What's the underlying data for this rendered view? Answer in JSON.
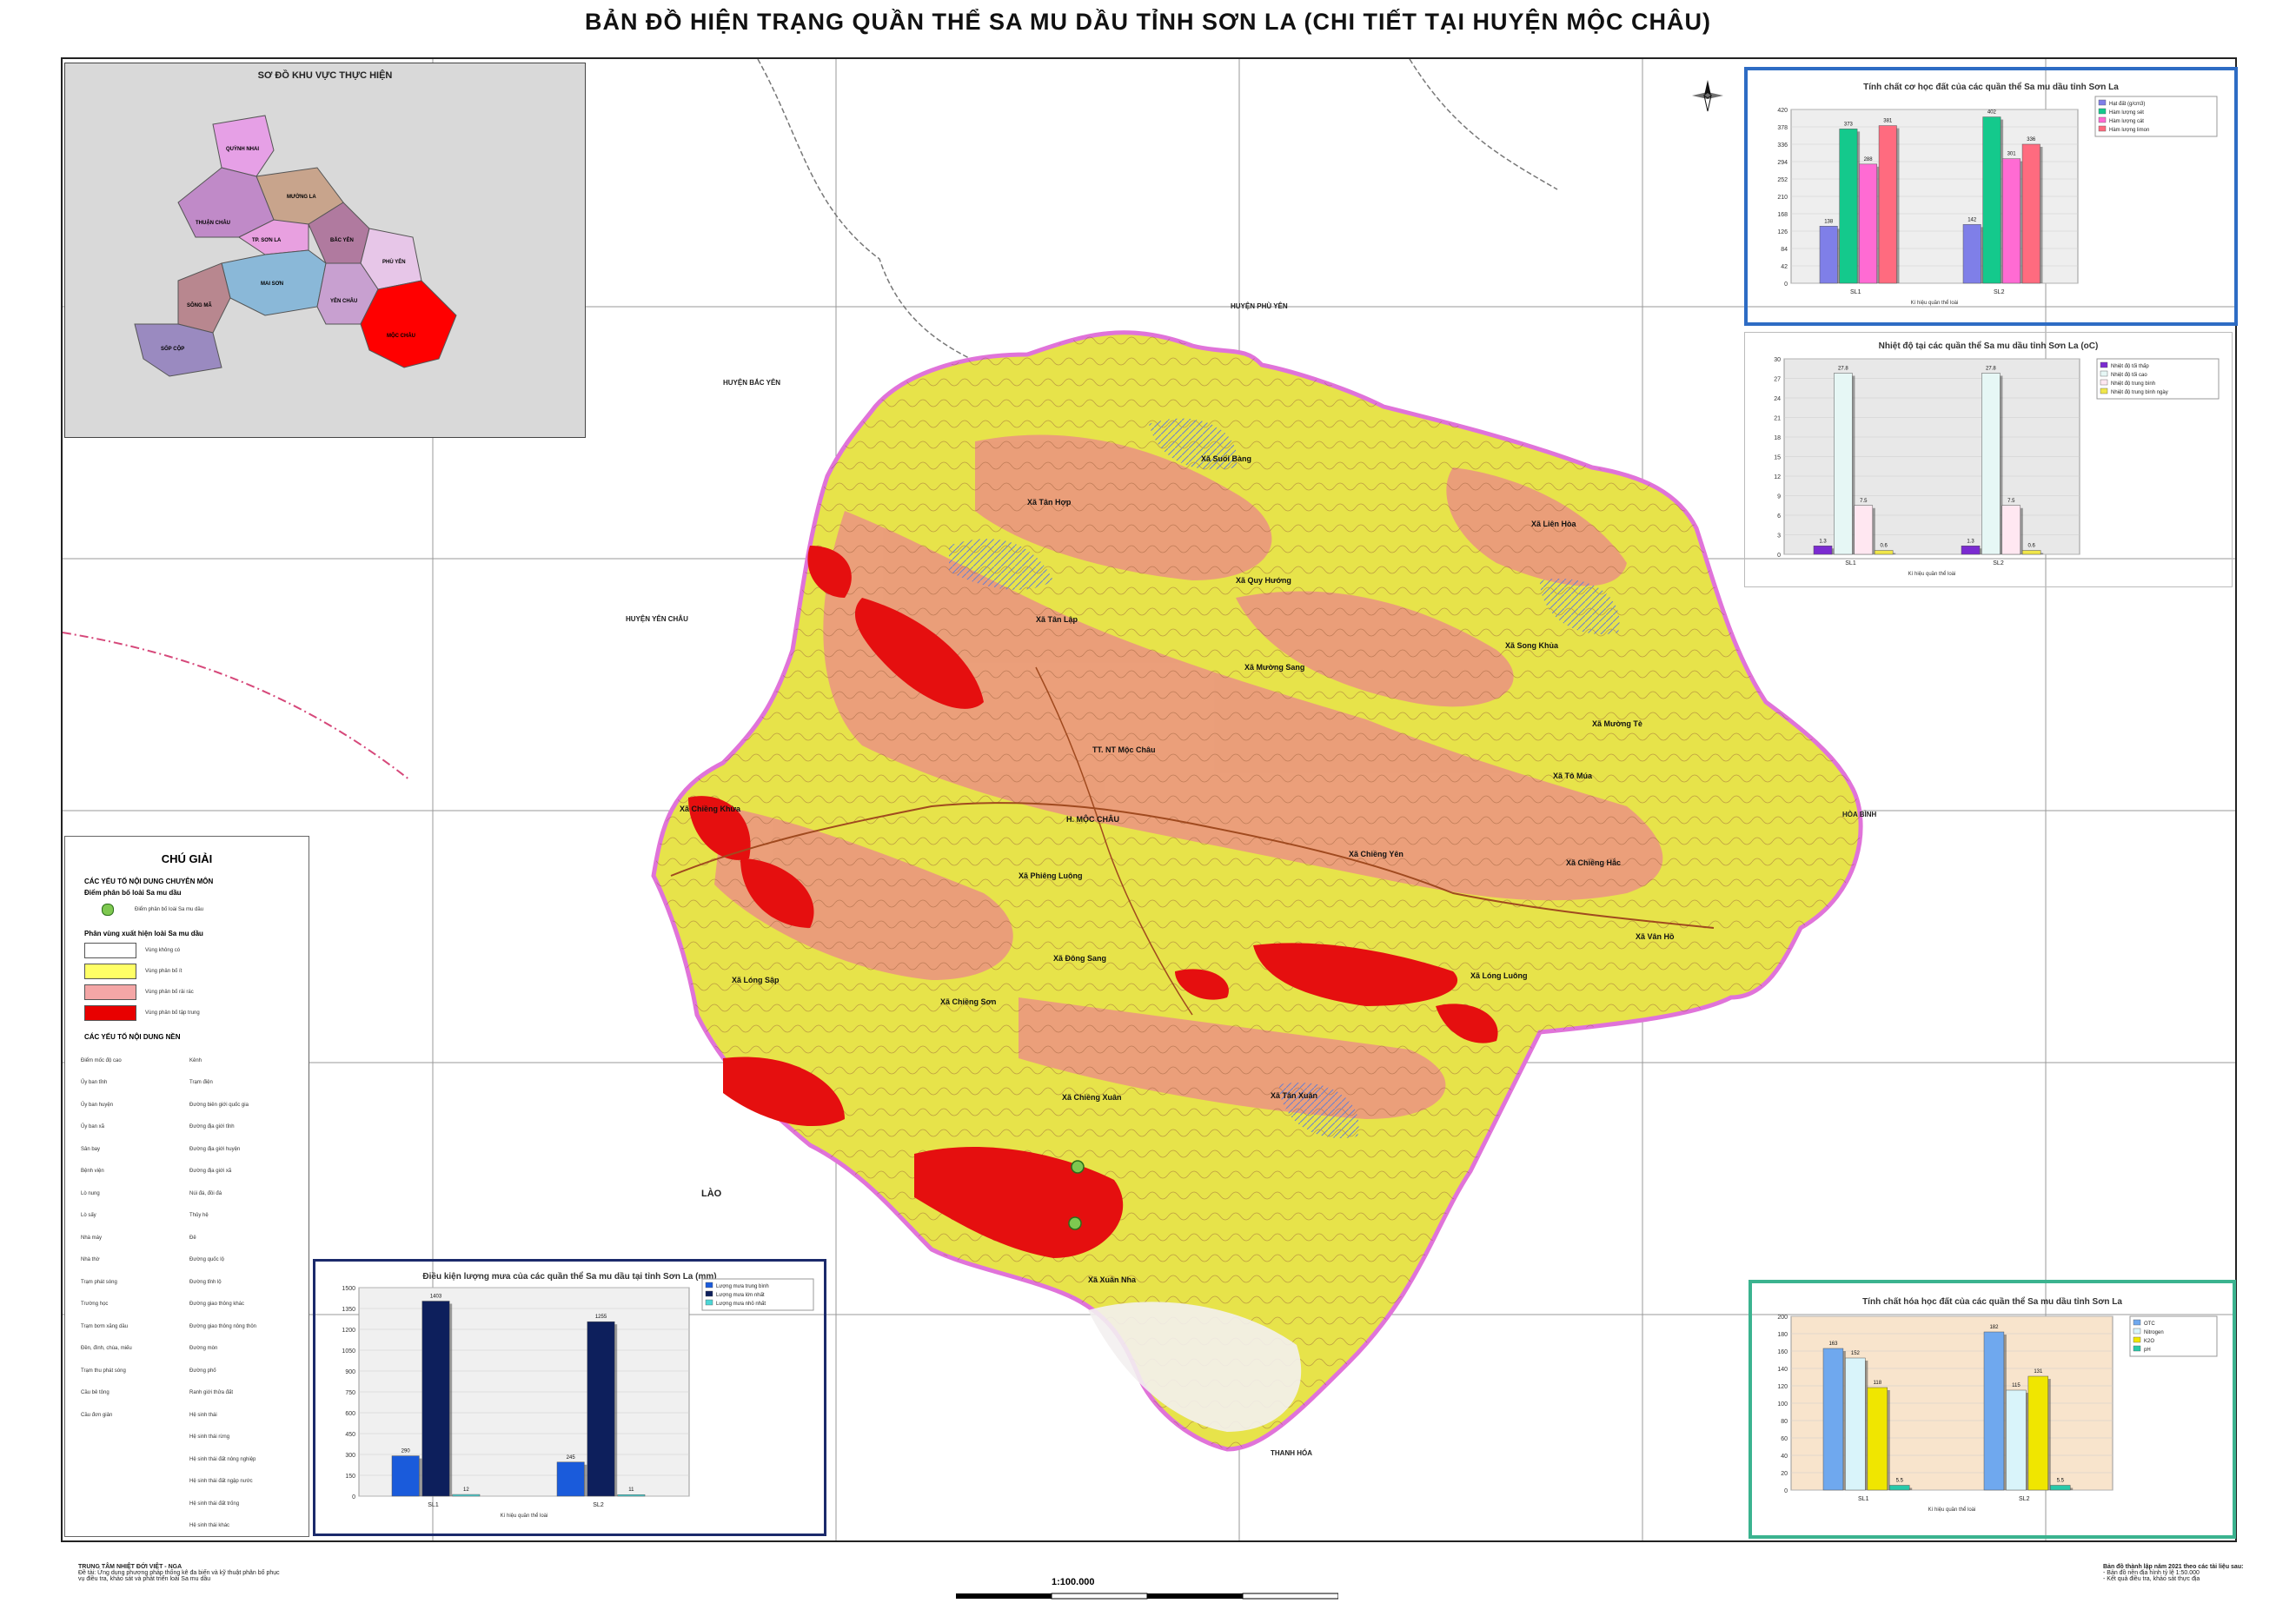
{
  "title": "BẢN ĐỒ HIỆN TRẠNG QUẦN THỂ SA MU DẦU TỈNH SƠN LA (CHI TIẾT TẠI HUYỆN MỘC CHÂU)",
  "inset": {
    "title": "SƠ ĐỒ KHU VỰC THỰC HIỆN",
    "districts": [
      "QUỲNH NHAI",
      "MƯỜNG LA",
      "THUẬN CHÂU",
      "TP. SƠN LA",
      "BẮC YÊN",
      "PHÙ YÊN",
      "MAI SƠN",
      "SÔNG MÃ",
      "YÊN CHÂU",
      "SỐP CỘP",
      "MỘC CHÂU"
    ]
  },
  "surroundings": {
    "phu_yen": "HUYỆN PHÙ YÊN",
    "bac_yen": "HUYỆN BẮC YÊN",
    "yen_chau": "HUYỆN YÊN CHÂU",
    "hoa_binh": "HÒA BÌNH",
    "lao": "LÀO",
    "thanh_hoa": "THANH HÓA"
  },
  "communes": [
    "Xã Suối Bàng",
    "Xã Liên Hòa",
    "Xã Tân Hợp",
    "Xã Quy Hướng",
    "Xã Tân Lập",
    "Xã Mường Sang",
    "Xã Song Khủa",
    "Xã Chiềng Khừa",
    "TT. NT Mộc Châu",
    "H. MỘC CHÂU",
    "Xã Tô Múa",
    "Xã Chiềng Yên",
    "Xã Phiêng Luông",
    "Xã Đông Sang",
    "Xã Lóng Sập",
    "Xã Chiềng Sơn",
    "Xã Chiềng Xuân",
    "Xã Tân Xuân",
    "Xã Xuân Nha",
    "Xã Lóng Luông",
    "Xã Mường Tè",
    "Xã Chiềng Hắc",
    "Xã Vân Hồ"
  ],
  "legend": {
    "title": "CHÚ GIẢI",
    "section1": "CÁC YẾU TỐ NỘI DUNG CHUYÊN MÔN",
    "dist_header": "Điểm phân bố loài Sa mu dầu",
    "dist_point": "Điểm phân bố loài Sa mu dầu",
    "zone_header": "Phân vùng xuất hiện loài Sa mu dầu",
    "zones": [
      "Vùng không có",
      "Vùng phân bố ít",
      "Vùng phân bố rải rác",
      "Vùng phân bố tập trung"
    ],
    "zone_colors": [
      "#ffffff",
      "#ffff66",
      "#f4a6a6",
      "#e80000"
    ],
    "section2": "CÁC YẾU TỐ NỘI DUNG NỀN",
    "items_left": [
      "Điểm mốc độ cao",
      "Ủy ban tỉnh",
      "Ủy ban huyện",
      "Ủy ban xã",
      "Sân bay",
      "Bệnh viện",
      "Lò nung",
      "Lò sấy",
      "Nhà máy",
      "Nhà thờ",
      "Trạm phát sóng",
      "Trường học",
      "Trạm bơm xăng dầu",
      "Đền, đình, chùa, miếu",
      "Trạm thu phát sóng",
      "Cầu bê tông",
      "Cầu đơn giản"
    ],
    "items_right": [
      "Kênh",
      "Trạm điện",
      "Đường biên giới quốc gia",
      "Đường địa giới tỉnh",
      "Đường địa giới huyện",
      "Đường địa giới xã",
      "Núi đá, đồi đá",
      "Thủy hệ",
      "Đê",
      "Đường quốc lộ",
      "Đường tỉnh lộ",
      "Đường giao thông khác",
      "Đường giao thông nông thôn",
      "Đường mòn",
      "Đường phố",
      "Ranh giới thửa đất",
      "Hệ sinh thái"
    ],
    "eco_items": [
      "Hệ sinh thái rừng",
      "Hệ sinh thái đất nông nghiệp",
      "Hệ sinh thái đất ngập nước",
      "Hệ sinh thái đất trống",
      "Hệ sinh thái khác"
    ]
  },
  "charts": {
    "chart1": {
      "title": "Tính chất cơ học đất của các quần thể Sa mu dầu tỉnh Sơn La",
      "type": "bar",
      "categories": [
        "SL1",
        "SL2"
      ],
      "xlabel": "Kí hiệu quần thể loài",
      "series": [
        {
          "name": "Hạt đất (g/cm3)",
          "color": "#7f7fe8",
          "values": [
            138,
            142
          ]
        },
        {
          "name": "Hàm lượng sét",
          "color": "#14c98c",
          "values": [
            373,
            402
          ]
        },
        {
          "name": "Hàm lượng cát",
          "color": "#ff6bd3",
          "values": [
            288,
            301
          ]
        },
        {
          "name": "Hàm lượng limon",
          "color": "#ff6b7f",
          "values": [
            381,
            336
          ]
        }
      ],
      "ylim": [
        0,
        420
      ]
    },
    "chart2": {
      "title": "Nhiệt độ tại các quần thể Sa mu dầu tỉnh Sơn La (oC)",
      "type": "bar",
      "categories": [
        "SL1",
        "SL2"
      ],
      "xlabel": "Kí hiệu quần thể loài",
      "series": [
        {
          "name": "Nhiệt độ tối thấp",
          "color": "#7b2bd1",
          "values": [
            1.3,
            1.3
          ]
        },
        {
          "name": "Nhiệt độ tối cao",
          "color": "#e6f7f5",
          "values": [
            27.8,
            27.8
          ]
        },
        {
          "name": "Nhiệt độ trung bình",
          "color": "#ffe7f1",
          "values": [
            7.5,
            7.5
          ]
        },
        {
          "name": "Nhiệt độ trung bình ngày",
          "color": "#f0e64a",
          "values": [
            0.6,
            0.6
          ]
        }
      ],
      "ylim": [
        0,
        30
      ]
    },
    "chart3": {
      "title": "Điều kiện lượng mưa của các quần thể Sa mu dầu tại tỉnh Sơn La (mm)",
      "type": "bar",
      "categories": [
        "SL1",
        "SL2"
      ],
      "xlabel": "Kí hiệu quần thể loài",
      "series": [
        {
          "name": "Lượng mưa trung bình",
          "color": "#1a5bdb",
          "values": [
            290,
            245
          ]
        },
        {
          "name": "Lượng mưa lớn nhất",
          "color": "#0d1f5c",
          "values": [
            1403,
            1255
          ]
        },
        {
          "name": "Lượng mưa nhỏ nhất",
          "color": "#4cd6d6",
          "values": [
            12,
            11
          ]
        }
      ],
      "ylim": [
        0,
        1500
      ]
    },
    "chart4": {
      "title": "Tính chất hóa học đất của các quần thể Sa mu dầu tỉnh Sơn La",
      "type": "bar",
      "categories": [
        "SL1",
        "SL2"
      ],
      "xlabel": "Kí hiệu quần thể loài",
      "series": [
        {
          "name": "OTC",
          "color": "#6fa8ee",
          "values": [
            163,
            182
          ]
        },
        {
          "name": "Nitrogen",
          "color": "#d9f4fa",
          "values": [
            152,
            115
          ]
        },
        {
          "name": "K2O",
          "color": "#f0e600",
          "values": [
            118,
            131
          ]
        },
        {
          "name": "pH",
          "color": "#28c9a9",
          "values": [
            5.5,
            5.5
          ]
        }
      ],
      "ylim": [
        0,
        200
      ]
    }
  },
  "scale": "1:100.000",
  "footer_left": [
    "TRUNG TÂM NHIỆT ĐỚI VIỆT - NGA",
    "Đề tài: Ứng dụng phương pháp thống kê đa biến và kỹ thuật phân bố phục vụ điều tra, khảo sát và phát triển loài Sa mu dầu"
  ],
  "footer_right": [
    "Bản đồ thành lập năm 2021 theo các tài liệu sau:",
    "- Bản đồ nền địa hình tỷ lệ 1:50.000",
    "- Kết quả điều tra, khảo sát thực địa"
  ]
}
